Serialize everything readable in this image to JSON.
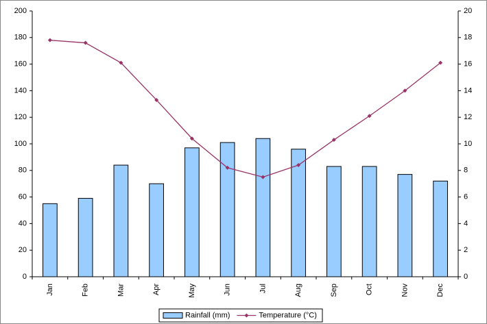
{
  "chart_data": {
    "type": "bar",
    "categories": [
      "Jan",
      "Feb",
      "Mar",
      "Apr",
      "May",
      "Jun",
      "Jul",
      "Aug",
      "Sep",
      "Oct",
      "Nov",
      "Dec"
    ],
    "series": [
      {
        "name": "Rainfall (mm)",
        "color": "#99ccff",
        "values": [
          55,
          59,
          84,
          70,
          97,
          101,
          104,
          96,
          83,
          83,
          77,
          72
        ]
      },
      {
        "name": "Temperature (°C)",
        "type": "line",
        "axis": "y2",
        "color": "#993366",
        "values": [
          17.8,
          17.6,
          16.1,
          13.3,
          10.4,
          8.2,
          7.5,
          8.4,
          10.3,
          12.1,
          14.0,
          16.1
        ]
      }
    ],
    "ylim": [
      0,
      200
    ],
    "yticks": [
      0,
      20,
      40,
      60,
      80,
      100,
      120,
      140,
      160,
      180,
      200
    ],
    "y2lim": [
      0,
      20
    ],
    "y2ticks": [
      0,
      2,
      4,
      6,
      8,
      10,
      12,
      14,
      16,
      18,
      20
    ],
    "grid": false,
    "legend": "bottom"
  }
}
